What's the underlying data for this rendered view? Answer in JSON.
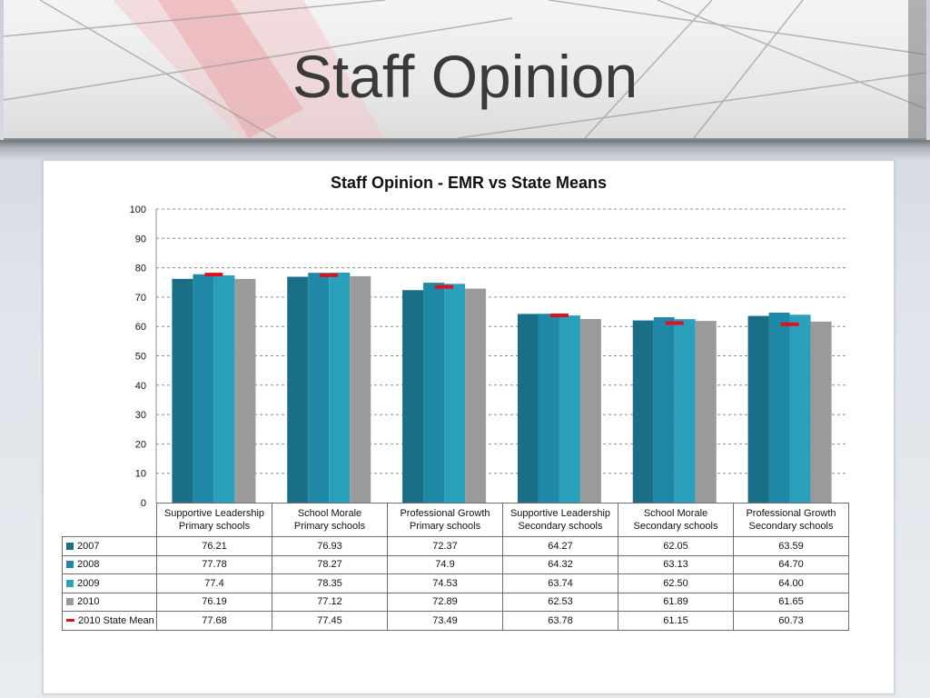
{
  "slide": {
    "title": "Staff Opinion"
  },
  "chart_data": {
    "type": "bar",
    "title": "Staff Opinion - EMR vs State Means",
    "ylim": [
      0,
      100
    ],
    "yticks": [
      0,
      10,
      20,
      30,
      40,
      50,
      60,
      70,
      80,
      90,
      100
    ],
    "grid": true,
    "categories": [
      [
        "Supportive Leadership",
        "Primary schools"
      ],
      [
        "School Morale",
        "Primary schools"
      ],
      [
        "Professional Growth",
        "Primary schools"
      ],
      [
        "Supportive Leadership",
        "Secondary schools"
      ],
      [
        "School Morale",
        "Secondary schools"
      ],
      [
        "Professional Growth",
        "Secondary schools"
      ]
    ],
    "series": [
      {
        "name": "2007",
        "color": "#1a6f87",
        "values": [
          76.21,
          76.93,
          72.37,
          64.27,
          62.05,
          63.59
        ],
        "labels": [
          "76.21",
          "76.93",
          "72.37",
          "64.27",
          "62.05",
          "63.59"
        ]
      },
      {
        "name": "2008",
        "color": "#1e88a6",
        "values": [
          77.78,
          78.27,
          74.9,
          64.32,
          63.13,
          64.7
        ],
        "labels": [
          "77.78",
          "78.27",
          "74.9",
          "64.32",
          "63.13",
          "64.70"
        ]
      },
      {
        "name": "2009",
        "color": "#2aa0bd",
        "values": [
          77.4,
          78.35,
          74.53,
          63.74,
          62.5,
          64.0
        ],
        "labels": [
          "77.4",
          "78.35",
          "74.53",
          "63.74",
          "62.50",
          "64.00"
        ]
      },
      {
        "name": "2010",
        "color": "#9a9a9a",
        "values": [
          76.19,
          77.12,
          72.89,
          62.53,
          61.89,
          61.65
        ],
        "labels": [
          "76.19",
          "77.12",
          "72.89",
          "62.53",
          "61.89",
          "61.65"
        ]
      }
    ],
    "mean_series": {
      "name": "2010 State Mean",
      "color": "#e0101e",
      "values": [
        77.68,
        77.45,
        73.49,
        63.78,
        61.15,
        60.73
      ],
      "labels": [
        "77.68",
        "77.45",
        "73.49",
        "63.78",
        "61.15",
        "60.73"
      ]
    }
  }
}
